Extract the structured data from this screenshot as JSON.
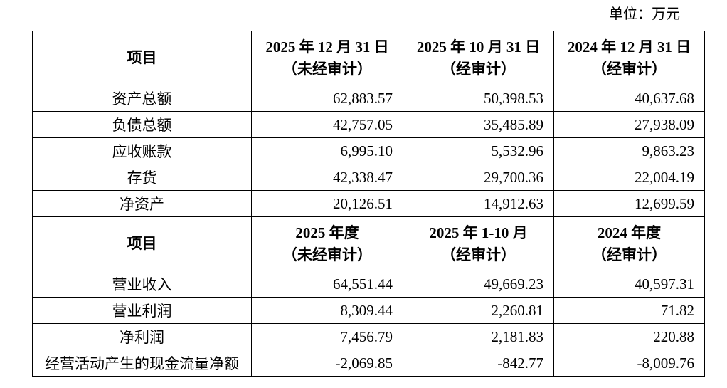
{
  "page": {
    "unit_label": "单位：万元"
  },
  "table": {
    "sections": [
      {
        "header": {
          "item_label": "项目",
          "columns": [
            {
              "period": "2025 年 12 月 31 日",
              "audit": "（未经审计）"
            },
            {
              "period": "2025 年 10 月 31 日",
              "audit": "（经审计）"
            },
            {
              "period": "2024 年 12 月 31 日",
              "audit": "（经审计）"
            }
          ]
        },
        "rows": [
          {
            "label": "资产总额",
            "values": [
              "62,883.57",
              "50,398.53",
              "40,637.68"
            ]
          },
          {
            "label": "负债总额",
            "values": [
              "42,757.05",
              "35,485.89",
              "27,938.09"
            ]
          },
          {
            "label": "应收账款",
            "values": [
              "6,995.10",
              "5,532.96",
              "9,863.23"
            ]
          },
          {
            "label": "存货",
            "values": [
              "42,338.47",
              "29,700.36",
              "22,004.19"
            ]
          },
          {
            "label": "净资产",
            "values": [
              "20,126.51",
              "14,912.63",
              "12,699.59"
            ]
          }
        ]
      },
      {
        "header": {
          "item_label": "项目",
          "columns": [
            {
              "period": "2025 年度",
              "audit": "（未经审计）"
            },
            {
              "period": "2025 年 1-10 月",
              "audit": "（经审计）"
            },
            {
              "period": "2024 年度",
              "audit": "（经审计）"
            }
          ]
        },
        "rows": [
          {
            "label": "营业收入",
            "values": [
              "64,551.44",
              "49,669.23",
              "40,597.31"
            ]
          },
          {
            "label": "营业利润",
            "values": [
              "8,309.44",
              "2,260.81",
              "71.82"
            ]
          },
          {
            "label": "净利润",
            "values": [
              "7,456.79",
              "2,181.83",
              "220.88"
            ]
          },
          {
            "label": "经营活动产生的现金流量净额",
            "values": [
              "-2,069.85",
              "-842.77",
              "-8,009.76"
            ]
          }
        ]
      }
    ]
  }
}
